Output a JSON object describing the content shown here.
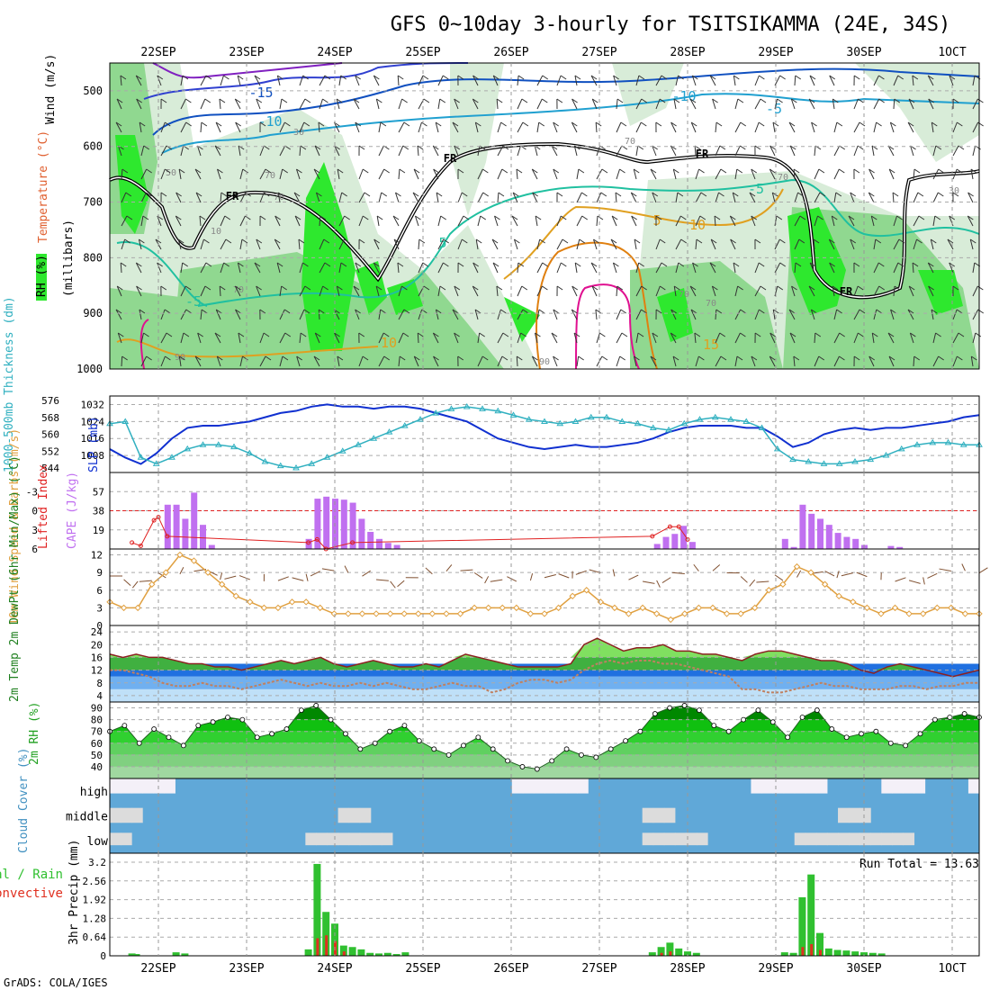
{
  "title": "GFS 0~10day 3-hourly for TSITSIKAMMA (24E, 34S)",
  "footer": "GrADS: COLA/IGES",
  "colors": {
    "rh_green": "#2ee82e",
    "rh_light": "#d8ecd8",
    "slp": "#1030d0",
    "thickness": "#30b0c0",
    "cape": "#c070f0",
    "lifted_index": "#e02020",
    "wind_speed": "#e0a040",
    "cloud": "#60a8d8",
    "precip_total": "#30c030",
    "precip_convective": "#e03020"
  },
  "chart_data": [
    {
      "name": "upper-air-cross-section",
      "type": "heatmap",
      "days": [
        "22SEP",
        "23SEP",
        "24SEP",
        "25SEP",
        "26SEP",
        "27SEP",
        "28SEP",
        "29SEP",
        "30SEP",
        "1OCT"
      ],
      "yticks": [
        "500",
        "600",
        "700",
        "800",
        "900",
        "1000"
      ],
      "ylabel": "(millibars)",
      "legend_labels": {
        "rh": "RH (%)",
        "temperature": "Temperature (°C)",
        "wind": "Wind (m/s)"
      },
      "freezing_label": "FR",
      "temperature_contour_labels": [
        "-15",
        "-10",
        "-10",
        "-5",
        "-5",
        "-5",
        "5",
        "5",
        "10",
        "10",
        "15"
      ],
      "rh_contour_labels": [
        "30",
        "70",
        "10",
        "70",
        "70",
        "50",
        "70",
        "30",
        "70",
        "70",
        "70",
        "90",
        "90",
        "70"
      ],
      "ylim": [
        450,
        1000
      ]
    },
    {
      "name": "slp-thickness",
      "type": "line",
      "ylabel_left": "1000-500mb Thickness (dm)",
      "ylabel_right": "SLP (mb)",
      "thickness_ticks": [
        "544",
        "552",
        "560",
        "568",
        "576"
      ],
      "slp_ticks": [
        "1008",
        "1016",
        "1024",
        "1032"
      ],
      "slp": [
        1011,
        1007,
        1004,
        1009,
        1016,
        1021,
        1022,
        1022,
        1023,
        1024,
        1026,
        1028,
        1029,
        1031,
        1032,
        1031,
        1031,
        1030,
        1031,
        1031,
        1030,
        1028,
        1026,
        1024,
        1020,
        1016,
        1014,
        1012,
        1011,
        1012,
        1013,
        1012,
        1012,
        1013,
        1014,
        1016,
        1019,
        1021,
        1022,
        1022,
        1022,
        1021,
        1021,
        1017,
        1012,
        1014,
        1018,
        1020,
        1021,
        1020,
        1021,
        1021,
        1022,
        1023,
        1024,
        1026,
        1027
      ],
      "thickness": [
        565,
        566,
        549,
        546,
        549,
        553,
        555,
        555,
        554,
        551,
        547,
        545,
        544,
        546,
        549,
        552,
        555,
        558,
        561,
        564,
        567,
        570,
        572,
        573,
        572,
        571,
        569,
        567,
        566,
        565,
        566,
        568,
        568,
        566,
        565,
        563,
        562,
        565,
        567,
        568,
        567,
        566,
        563,
        553,
        548,
        547,
        546,
        546,
        547,
        548,
        550,
        553,
        555,
        556,
        556,
        555,
        555
      ],
      "ylim_slp": [
        1000,
        1036
      ],
      "ylim_thickness": [
        544,
        576
      ]
    },
    {
      "name": "cape-lifted-index",
      "type": "bar",
      "ylabel_left": "Lifted Index",
      "ylabel_right": "CAPE (J/kg)",
      "li_ticks": [
        "-3",
        "0",
        "3",
        "6"
      ],
      "cape_ticks": [
        "19",
        "38",
        "57"
      ],
      "ylim_cape": [
        0,
        76
      ],
      "ylim_li": [
        6,
        -6
      ],
      "cape": [
        [
          22.05,
          0
        ],
        [
          22.1,
          44
        ],
        [
          22.2,
          44
        ],
        [
          22.3,
          30
        ],
        [
          22.4,
          56
        ],
        [
          22.5,
          24
        ],
        [
          22.6,
          4
        ],
        [
          23.7,
          10
        ],
        [
          23.8,
          50
        ],
        [
          23.9,
          52
        ],
        [
          24.0,
          50
        ],
        [
          24.1,
          49
        ],
        [
          24.2,
          46
        ],
        [
          24.3,
          30
        ],
        [
          24.4,
          17
        ],
        [
          24.5,
          10
        ],
        [
          24.6,
          6
        ],
        [
          24.7,
          4
        ],
        [
          27.65,
          5
        ],
        [
          27.75,
          12
        ],
        [
          27.85,
          15
        ],
        [
          27.95,
          23
        ],
        [
          28.05,
          7
        ],
        [
          29.1,
          10
        ],
        [
          29.2,
          2
        ],
        [
          29.3,
          44
        ],
        [
          29.4,
          35
        ],
        [
          29.5,
          30
        ],
        [
          29.6,
          24
        ],
        [
          29.7,
          16
        ],
        [
          29.8,
          12
        ],
        [
          29.9,
          10
        ],
        [
          30.0,
          4
        ],
        [
          30.3,
          3
        ],
        [
          30.4,
          2
        ]
      ],
      "lifted_index": [
        [
          21.7,
          5
        ],
        [
          21.8,
          5.5
        ],
        [
          21.95,
          1.5
        ],
        [
          22.0,
          1
        ],
        [
          22.1,
          4
        ],
        [
          23.7,
          5
        ],
        [
          23.8,
          4.5
        ],
        [
          23.9,
          6
        ],
        [
          24.2,
          5
        ],
        [
          27.6,
          4
        ],
        [
          27.8,
          2.5
        ],
        [
          27.9,
          2.5
        ],
        [
          28.0,
          4.5
        ]
      ]
    },
    {
      "name": "wind-10m",
      "type": "line",
      "ylabel": "10m Wind Speed & Barbs (m/s)",
      "yticks": [
        "0",
        "3",
        "6",
        "9",
        "12"
      ],
      "ylim": [
        0,
        13
      ],
      "speed": [
        4,
        3,
        3,
        7,
        9,
        12,
        11,
        9,
        7,
        5,
        4,
        3,
        3,
        4,
        4,
        3,
        2,
        2,
        2,
        2,
        2,
        2,
        2,
        2,
        2,
        2,
        3,
        3,
        3,
        3,
        2,
        2,
        3,
        5,
        6,
        4,
        3,
        2,
        3,
        2,
        1,
        2,
        3,
        3,
        2,
        2,
        3,
        6,
        7,
        10,
        9,
        7,
        5,
        4,
        3,
        2,
        3,
        2,
        2,
        3,
        3,
        2,
        2
      ]
    },
    {
      "name": "temperature-2m",
      "type": "area",
      "ylabel": "2m Temp 2m DewPt (6hr Min/Max) (°C)",
      "yticks": [
        "4",
        "8",
        "12",
        "16",
        "20",
        "24"
      ],
      "ylim": [
        2,
        26
      ],
      "temp": [
        17,
        16,
        17,
        16,
        16,
        15,
        14,
        14,
        13,
        13,
        12,
        13,
        14,
        15,
        14,
        15,
        16,
        14,
        13,
        14,
        15,
        14,
        13,
        13,
        14,
        13,
        15,
        17,
        16,
        15,
        14,
        13,
        13,
        13,
        13,
        14,
        20,
        22,
        20,
        18,
        19,
        19,
        20,
        18,
        18,
        17,
        17,
        16,
        15,
        17,
        18,
        18,
        17,
        16,
        15,
        15,
        14,
        12,
        11,
        13,
        14,
        13,
        12,
        11,
        10,
        11,
        12
      ],
      "dewpoint": [
        12,
        12,
        11,
        10,
        8,
        7,
        7,
        8,
        7,
        7,
        6,
        7,
        8,
        9,
        8,
        7,
        8,
        7,
        7,
        8,
        7,
        8,
        7,
        6,
        6,
        7,
        8,
        7,
        7,
        5,
        6,
        8,
        9,
        9,
        8,
        9,
        12,
        14,
        15,
        14,
        15,
        15,
        14,
        14,
        13,
        12,
        11,
        10,
        6,
        6,
        5,
        5,
        6,
        7,
        8,
        7,
        7,
        6,
        6,
        6,
        7,
        7,
        6,
        7,
        7,
        8,
        8
      ]
    },
    {
      "name": "rh-2m",
      "type": "area",
      "ylabel": "2m RH (%)",
      "yticks": [
        "40",
        "50",
        "60",
        "70",
        "80",
        "90"
      ],
      "ylim": [
        30,
        95
      ],
      "rh": [
        70,
        75,
        60,
        72,
        65,
        58,
        75,
        78,
        82,
        80,
        65,
        68,
        72,
        88,
        92,
        80,
        68,
        55,
        60,
        70,
        75,
        62,
        55,
        50,
        58,
        65,
        55,
        45,
        40,
        38,
        45,
        55,
        50,
        48,
        55,
        62,
        70,
        85,
        90,
        92,
        88,
        75,
        70,
        80,
        88,
        78,
        65,
        82,
        88,
        72,
        65,
        68,
        70,
        60,
        58,
        68,
        80,
        82,
        85,
        82
      ]
    },
    {
      "name": "cloud-cover",
      "type": "heatmap",
      "ylabel": "Cloud Cover (%)",
      "levels": [
        "high",
        "middle",
        "low"
      ]
    },
    {
      "name": "precipitation",
      "type": "bar",
      "ylabel": "3hr Precip (mm)",
      "legend_left": "Total / Rain",
      "legend_left2": "Convective",
      "run_total": "Run Total = 13.63",
      "yticks": [
        "0",
        "0.64",
        "1.28",
        "1.92",
        "2.56",
        "3.2"
      ],
      "ylim": [
        0,
        3.2
      ],
      "total": [
        [
          21.7,
          0.08
        ],
        [
          21.75,
          0.06
        ],
        [
          22.2,
          0.12
        ],
        [
          22.3,
          0.08
        ],
        [
          23.7,
          0.22
        ],
        [
          23.8,
          3.14
        ],
        [
          23.9,
          1.5
        ],
        [
          24.0,
          1.1
        ],
        [
          24.1,
          0.35
        ],
        [
          24.2,
          0.3
        ],
        [
          24.3,
          0.22
        ],
        [
          24.4,
          0.1
        ],
        [
          24.5,
          0.08
        ],
        [
          24.6,
          0.1
        ],
        [
          24.7,
          0.06
        ],
        [
          24.8,
          0.12
        ],
        [
          27.6,
          0.12
        ],
        [
          27.7,
          0.3
        ],
        [
          27.8,
          0.45
        ],
        [
          27.9,
          0.25
        ],
        [
          28.0,
          0.15
        ],
        [
          28.1,
          0.1
        ],
        [
          29.1,
          0.12
        ],
        [
          29.2,
          0.1
        ],
        [
          29.3,
          2.0
        ],
        [
          29.4,
          2.78
        ],
        [
          29.5,
          0.78
        ],
        [
          29.6,
          0.25
        ],
        [
          29.7,
          0.2
        ],
        [
          29.8,
          0.18
        ],
        [
          29.9,
          0.15
        ],
        [
          30.0,
          0.12
        ],
        [
          30.1,
          0.1
        ],
        [
          30.2,
          0.08
        ]
      ],
      "convective": [
        [
          23.8,
          0.6
        ],
        [
          23.9,
          0.7
        ],
        [
          24.0,
          0.5
        ],
        [
          24.1,
          0.15
        ],
        [
          27.7,
          0.1
        ],
        [
          27.8,
          0.15
        ],
        [
          29.3,
          0.3
        ],
        [
          29.4,
          0.4
        ],
        [
          29.5,
          0.2
        ]
      ]
    }
  ]
}
